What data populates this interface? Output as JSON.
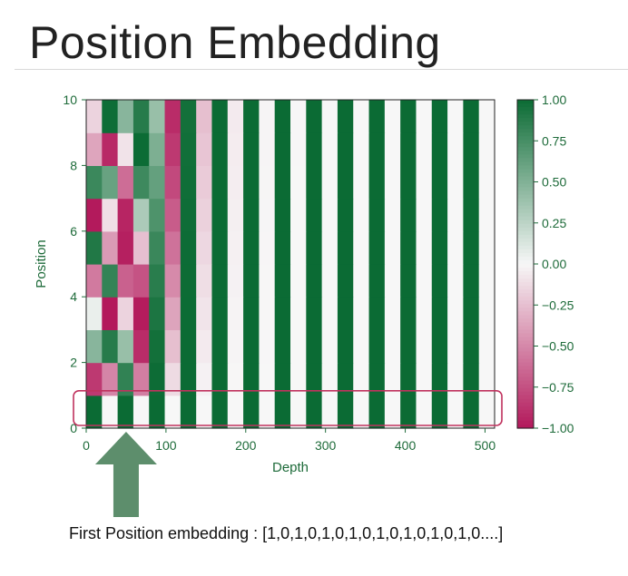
{
  "slide": {
    "title": "Position Embedding",
    "caption": "First Position embedding :  [1,0,1,0,1,0,1,0,1,0,1,0,1,0,1,0....]"
  },
  "colors": {
    "pos": "#0b6b34",
    "mid": "#f7f7f7",
    "neg": "#b3195b",
    "axis_text": "#1e6b3a",
    "highlight_box": "#c0325e",
    "arrow": "#5d8e6c"
  },
  "chart_data": {
    "type": "heatmap",
    "colormap": "PiYG",
    "xlabel": "Depth",
    "ylabel": "Position",
    "xlim": [
      0,
      512
    ],
    "ylim": [
      0,
      10
    ],
    "x_ticks": [
      "0",
      "100",
      "200",
      "300",
      "400",
      "500"
    ],
    "y_ticks": [
      "0",
      "2",
      "4",
      "6",
      "8",
      "10"
    ],
    "colorbar": {
      "range": [
        -1.0,
        1.0
      ],
      "ticks": [
        "1.00",
        "0.75",
        "0.50",
        "0.25",
        "0.00",
        "−0.25",
        "−0.50",
        "−0.75",
        "−1.00"
      ]
    },
    "rows": 10,
    "visible_columns": 26,
    "first_row_values": [
      1,
      0,
      1,
      0,
      1,
      0,
      1,
      0,
      1,
      0,
      1,
      0,
      1,
      0,
      1,
      0,
      1,
      0,
      1,
      0,
      1,
      0,
      1,
      0,
      1,
      0
    ],
    "highlight": "Position 0 row",
    "annotation": "arrow pointing to first position row"
  }
}
